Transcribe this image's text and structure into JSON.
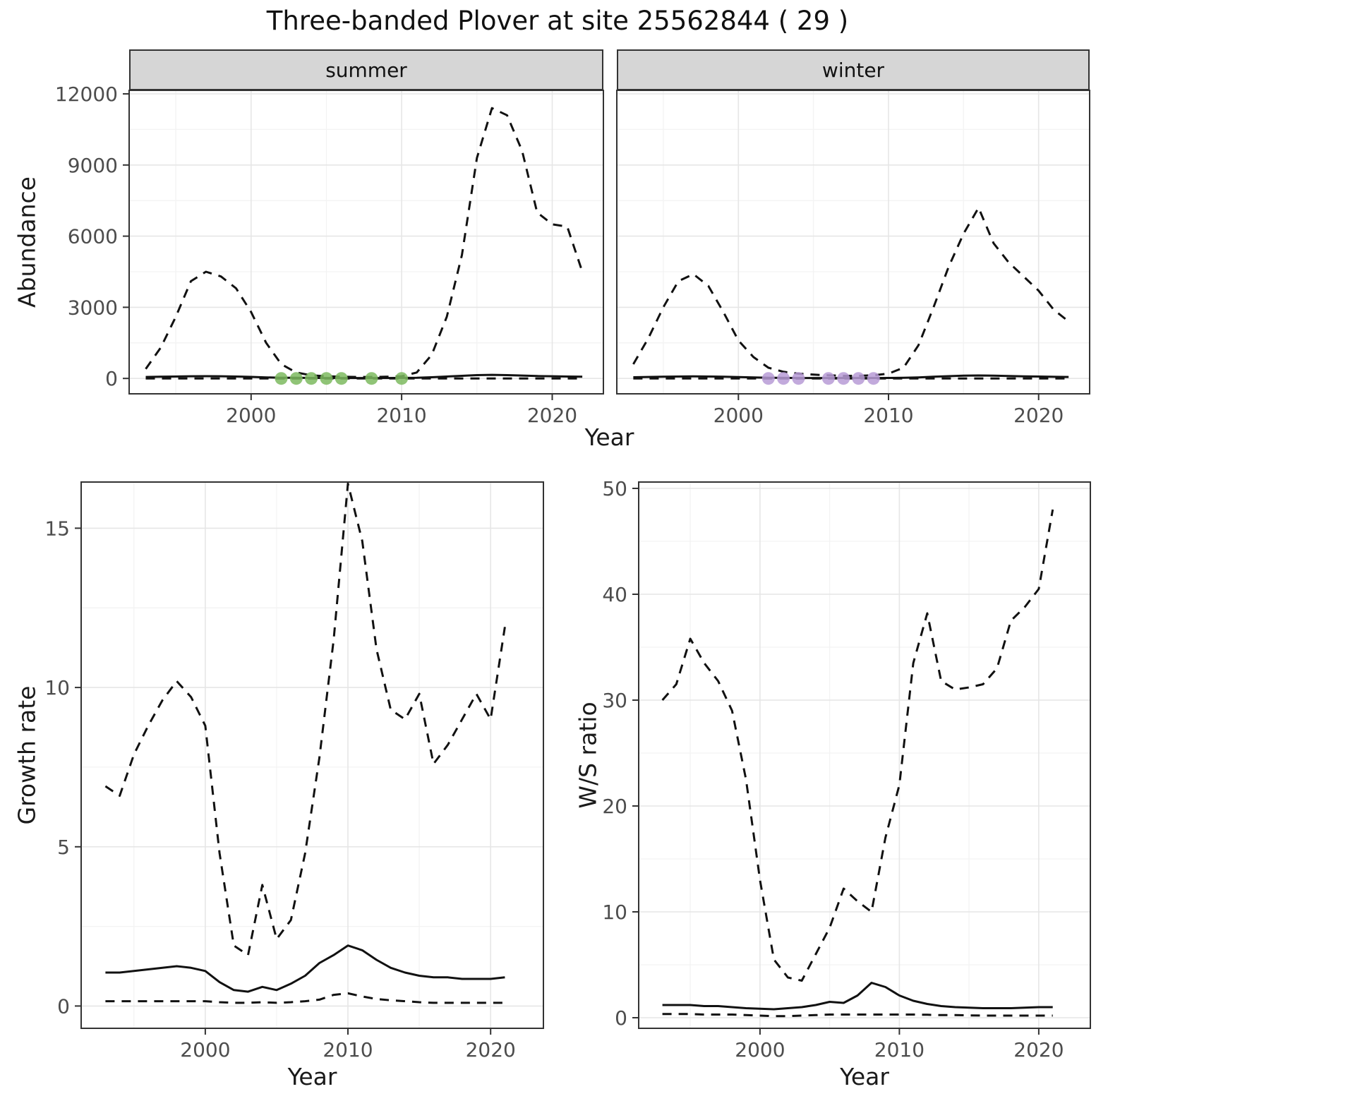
{
  "title": "Three-banded Plover at site 25562844 ( 29 )",
  "colors": {
    "line": "#111111",
    "grid_major": "#e6e6e6",
    "grid_minor": "#f3f3f3",
    "panel_border": "#333333",
    "strip_bg": "#d6d6d6",
    "tick_text": "#4d4d4d",
    "summer_point": "#7dba5f",
    "winter_point": "#b79bd6"
  },
  "chart_data": [
    {
      "type": "line",
      "facet_label": "summer",
      "xlabel": "Year",
      "ylabel": "Abundance",
      "xlim": [
        1991.9,
        2023.4
      ],
      "ylim": [
        -650,
        12150
      ],
      "xticks": [
        2000,
        2010,
        2020
      ],
      "yticks": [
        0,
        3000,
        6000,
        9000,
        12000
      ],
      "grid": true,
      "legend": "none",
      "x": [
        1993,
        1994,
        1995,
        1996,
        1997,
        1998,
        1999,
        2000,
        2001,
        2002,
        2003,
        2004,
        2005,
        2006,
        2007,
        2008,
        2009,
        2010,
        2011,
        2012,
        2013,
        2014,
        2015,
        2016,
        2017,
        2018,
        2019,
        2020,
        2021,
        2022
      ],
      "series": [
        {
          "name": "upper-ci",
          "style": "dashed",
          "values": [
            400,
            1300,
            2600,
            4100,
            4500,
            4300,
            3800,
            2800,
            1500,
            600,
            250,
            130,
            90,
            70,
            60,
            60,
            70,
            90,
            250,
            1000,
            2600,
            5200,
            9300,
            11400,
            11100,
            9600,
            7000,
            6500,
            6400,
            4500
          ]
        },
        {
          "name": "estimate",
          "style": "solid",
          "values": [
            60,
            70,
            80,
            90,
            95,
            90,
            80,
            65,
            45,
            30,
            25,
            20,
            18,
            18,
            18,
            18,
            18,
            22,
            30,
            50,
            80,
            110,
            140,
            150,
            140,
            120,
            100,
            90,
            80,
            70
          ]
        },
        {
          "name": "lower-ci",
          "style": "dashed",
          "values": [
            0,
            0,
            0,
            0,
            0,
            0,
            0,
            0,
            0,
            0,
            0,
            0,
            0,
            0,
            0,
            0,
            0,
            0,
            0,
            0,
            0,
            0,
            0,
            0,
            0,
            0,
            0,
            0,
            0,
            0
          ]
        }
      ],
      "points": {
        "name": "summer-zero-count-dot",
        "color": "#7dba5f",
        "x": [
          2002,
          2003,
          2004,
          2005,
          2006,
          2008,
          2010
        ],
        "y": [
          0,
          0,
          0,
          0,
          0,
          0,
          0
        ]
      }
    },
    {
      "type": "line",
      "facet_label": "winter",
      "xlabel": "Year",
      "ylabel": "Abundance",
      "xlim": [
        1991.9,
        2023.4
      ],
      "ylim": [
        -650,
        12150
      ],
      "xticks": [
        2000,
        2010,
        2020
      ],
      "yticks": [
        0,
        3000,
        6000,
        9000,
        12000
      ],
      "grid": true,
      "legend": "none",
      "x": [
        1993,
        1994,
        1995,
        1996,
        1997,
        1998,
        1999,
        2000,
        2001,
        2002,
        2003,
        2004,
        2005,
        2006,
        2007,
        2008,
        2009,
        2010,
        2011,
        2012,
        2013,
        2014,
        2015,
        2016,
        2017,
        2018,
        2019,
        2020,
        2021,
        2022
      ],
      "series": [
        {
          "name": "upper-ci",
          "style": "dashed",
          "values": [
            600,
            1700,
            3000,
            4100,
            4400,
            3900,
            2800,
            1600,
            900,
            450,
            280,
            200,
            160,
            130,
            110,
            110,
            130,
            200,
            450,
            1400,
            3000,
            4700,
            6100,
            7200,
            5700,
            4900,
            4300,
            3700,
            2900,
            2400
          ]
        },
        {
          "name": "estimate",
          "style": "solid",
          "values": [
            50,
            60,
            70,
            80,
            85,
            80,
            70,
            55,
            40,
            28,
            22,
            18,
            16,
            16,
            16,
            16,
            16,
            20,
            28,
            45,
            70,
            95,
            115,
            125,
            115,
            100,
            88,
            78,
            68,
            60
          ]
        },
        {
          "name": "lower-ci",
          "style": "dashed",
          "values": [
            0,
            0,
            0,
            0,
            0,
            0,
            0,
            0,
            0,
            0,
            0,
            0,
            0,
            0,
            0,
            0,
            0,
            0,
            0,
            0,
            0,
            0,
            0,
            0,
            0,
            0,
            0,
            0,
            0,
            0
          ]
        }
      ],
      "points": {
        "name": "winter-zero-count-dot",
        "color": "#b79bd6",
        "x": [
          2002,
          2003,
          2004,
          2006,
          2007,
          2008,
          2009
        ],
        "y": [
          0,
          0,
          0,
          0,
          0,
          0,
          0
        ]
      }
    },
    {
      "type": "line",
      "xlabel": "Year",
      "ylabel": "Growth rate",
      "xlim": [
        1991.3,
        2023.7
      ],
      "ylim": [
        -0.7,
        16.45
      ],
      "xticks": [
        2000,
        2010,
        2020
      ],
      "yticks": [
        0,
        5,
        10,
        15
      ],
      "grid": true,
      "legend": "none",
      "x": [
        1993,
        1994,
        1995,
        1996,
        1997,
        1998,
        1999,
        2000,
        2001,
        2002,
        2003,
        2004,
        2005,
        2006,
        2007,
        2008,
        2009,
        2010,
        2011,
        2012,
        2013,
        2014,
        2015,
        2016,
        2017,
        2018,
        2019,
        2020,
        2021
      ],
      "series": [
        {
          "name": "upper-ci",
          "style": "dashed",
          "values": [
            6.9,
            6.6,
            7.9,
            8.8,
            9.6,
            10.2,
            9.7,
            8.8,
            4.8,
            1.9,
            1.6,
            3.8,
            2.1,
            2.7,
            4.8,
            7.8,
            11.5,
            16.4,
            14.6,
            11.2,
            9.3,
            9.0,
            9.8,
            7.6,
            8.2,
            9.0,
            9.8,
            9.0,
            11.9
          ]
        },
        {
          "name": "estimate",
          "style": "solid",
          "values": [
            1.05,
            1.05,
            1.1,
            1.15,
            1.2,
            1.25,
            1.2,
            1.1,
            0.75,
            0.5,
            0.45,
            0.6,
            0.5,
            0.7,
            0.95,
            1.35,
            1.6,
            1.9,
            1.75,
            1.45,
            1.2,
            1.05,
            0.95,
            0.9,
            0.9,
            0.85,
            0.85,
            0.85,
            0.9
          ]
        },
        {
          "name": "lower-ci",
          "style": "dashed",
          "values": [
            0.15,
            0.15,
            0.15,
            0.15,
            0.15,
            0.15,
            0.15,
            0.15,
            0.12,
            0.1,
            0.1,
            0.12,
            0.1,
            0.12,
            0.15,
            0.2,
            0.35,
            0.4,
            0.3,
            0.22,
            0.18,
            0.15,
            0.12,
            0.1,
            0.1,
            0.1,
            0.1,
            0.1,
            0.1
          ]
        }
      ]
    },
    {
      "type": "line",
      "xlabel": "Year",
      "ylabel": "W/S ratio",
      "xlim": [
        1991.3,
        2023.7
      ],
      "ylim": [
        -1,
        50.6
      ],
      "xticks": [
        2000,
        2010,
        2020
      ],
      "yticks": [
        0,
        10,
        20,
        30,
        40,
        50
      ],
      "grid": true,
      "legend": "none",
      "x": [
        1993,
        1994,
        1995,
        1996,
        1997,
        1998,
        1999,
        2000,
        2001,
        2002,
        2003,
        2004,
        2005,
        2006,
        2007,
        2008,
        2009,
        2010,
        2011,
        2012,
        2013,
        2014,
        2015,
        2016,
        2017,
        2018,
        2019,
        2020,
        2021
      ],
      "series": [
        {
          "name": "upper-ci",
          "style": "dashed",
          "values": [
            30,
            31.5,
            35.8,
            33.5,
            31.8,
            29,
            22.5,
            13,
            5.5,
            3.8,
            3.5,
            6,
            8.5,
            12.2,
            11,
            10,
            17,
            22,
            33.5,
            38.2,
            31.8,
            31,
            31.2,
            31.5,
            33,
            37.5,
            38.8,
            40.5,
            48
          ]
        },
        {
          "name": "estimate",
          "style": "solid",
          "values": [
            1.2,
            1.2,
            1.2,
            1.1,
            1.1,
            1.0,
            0.9,
            0.85,
            0.8,
            0.9,
            1.0,
            1.2,
            1.5,
            1.4,
            2.1,
            3.3,
            2.9,
            2.1,
            1.6,
            1.3,
            1.1,
            1.0,
            0.95,
            0.9,
            0.9,
            0.9,
            0.95,
            1.0,
            1.0
          ]
        },
        {
          "name": "lower-ci",
          "style": "dashed",
          "values": [
            0.35,
            0.35,
            0.35,
            0.3,
            0.3,
            0.3,
            0.25,
            0.2,
            0.15,
            0.15,
            0.2,
            0.25,
            0.3,
            0.3,
            0.3,
            0.3,
            0.3,
            0.3,
            0.3,
            0.28,
            0.25,
            0.25,
            0.22,
            0.2,
            0.2,
            0.2,
            0.2,
            0.2,
            0.2
          ]
        }
      ]
    }
  ]
}
